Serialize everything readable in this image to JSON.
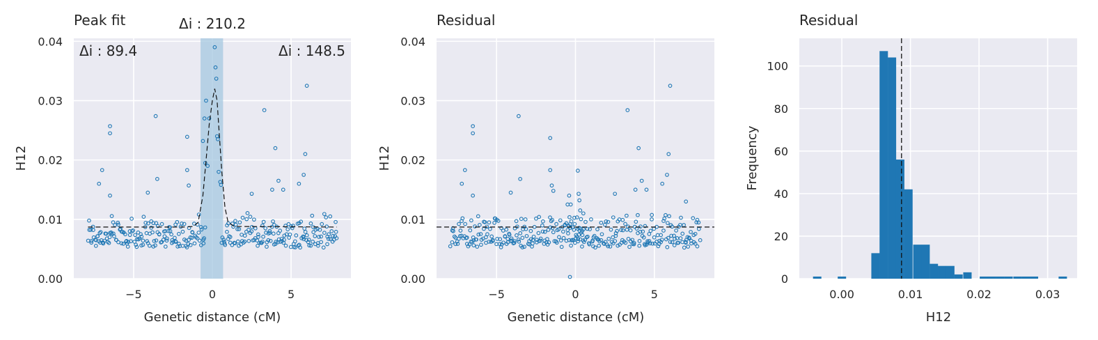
{
  "chart_data": [
    {
      "type": "scatter",
      "title": "Peak fit",
      "xlabel": "Genetic distance (cM)",
      "ylabel": "H12",
      "xlim": [
        -8.8,
        8.8
      ],
      "ylim": [
        0,
        0.0405
      ],
      "xticks": [
        -5,
        0,
        5
      ],
      "xtick_labels": [
        "−5",
        "0",
        "5"
      ],
      "yticks": [
        0,
        0.01,
        0.02,
        0.03,
        0.04
      ],
      "ytick_labels": [
        "0.00",
        "0.01",
        "0.02",
        "0.03",
        "0.04"
      ],
      "grid": true,
      "point_color": "#1f77b4",
      "shaded_region": {
        "x0": -0.75,
        "x1": 0.68,
        "color": "#a6c8e0"
      },
      "baseline": 0.0087,
      "annotations": [
        {
          "text": "Δi : 89.4",
          "position": "top-left"
        },
        {
          "text": "Δi : 210.2",
          "position": "above-peak"
        },
        {
          "text": "Δi : 148.5",
          "position": "top-right"
        }
      ],
      "fit_curve": {
        "x": [
          -7.9,
          -1.8,
          -1.2,
          -0.9,
          -0.6,
          -0.4,
          -0.2,
          0.0,
          0.15,
          0.3,
          0.4,
          0.6,
          0.8,
          1.0,
          1.4,
          7.9
        ],
        "y": [
          0.0087,
          0.0087,
          0.0088,
          0.0095,
          0.014,
          0.02,
          0.026,
          0.03,
          0.032,
          0.03,
          0.026,
          0.018,
          0.012,
          0.0095,
          0.0088,
          0.0087
        ]
      },
      "high_points": [
        {
          "x": -6.5,
          "y": 0.0257
        },
        {
          "x": -6.5,
          "y": 0.0245
        },
        {
          "x": -7.0,
          "y": 0.0183
        },
        {
          "x": -7.2,
          "y": 0.016
        },
        {
          "x": -6.5,
          "y": 0.014
        },
        {
          "x": -3.6,
          "y": 0.0274
        },
        {
          "x": -4.1,
          "y": 0.0145
        },
        {
          "x": -3.5,
          "y": 0.0168
        },
        {
          "x": -1.6,
          "y": 0.0239
        },
        {
          "x": -1.6,
          "y": 0.0183
        },
        {
          "x": -1.5,
          "y": 0.0157
        },
        {
          "x": -0.6,
          "y": 0.0232
        },
        {
          "x": -0.4,
          "y": 0.03
        },
        {
          "x": -0.5,
          "y": 0.027
        },
        {
          "x": -0.2,
          "y": 0.027
        },
        {
          "x": 0.15,
          "y": 0.039
        },
        {
          "x": 0.2,
          "y": 0.0356
        },
        {
          "x": 0.25,
          "y": 0.0337
        },
        {
          "x": 0.3,
          "y": 0.024
        },
        {
          "x": 0.35,
          "y": 0.0235
        },
        {
          "x": 0.4,
          "y": 0.018
        },
        {
          "x": -0.45,
          "y": 0.0195
        },
        {
          "x": -0.3,
          "y": 0.019
        },
        {
          "x": 0.5,
          "y": 0.0163
        },
        {
          "x": 0.55,
          "y": 0.0158
        },
        {
          "x": 3.3,
          "y": 0.0284
        },
        {
          "x": 4.0,
          "y": 0.022
        },
        {
          "x": 4.2,
          "y": 0.0165
        },
        {
          "x": 3.8,
          "y": 0.015
        },
        {
          "x": 5.9,
          "y": 0.021
        },
        {
          "x": 6.0,
          "y": 0.0325
        },
        {
          "x": 5.8,
          "y": 0.0175
        },
        {
          "x": 5.5,
          "y": 0.016
        },
        {
          "x": 2.5,
          "y": 0.0143
        },
        {
          "x": 4.5,
          "y": 0.015
        }
      ]
    },
    {
      "type": "scatter",
      "title": "Residual",
      "xlabel": "Genetic distance (cM)",
      "ylabel": "H12",
      "xlim": [
        -8.8,
        8.8
      ],
      "ylim": [
        0,
        0.0405
      ],
      "xticks": [
        -5,
        0,
        5
      ],
      "xtick_labels": [
        "−5",
        "0",
        "5"
      ],
      "yticks": [
        0,
        0.01,
        0.02,
        0.03,
        0.04
      ],
      "ytick_labels": [
        "0.00",
        "0.01",
        "0.02",
        "0.03",
        "0.04"
      ],
      "grid": true,
      "point_color": "#1f77b4",
      "baseline": 0.0087,
      "high_points": [
        {
          "x": -6.5,
          "y": 0.0257
        },
        {
          "x": -6.5,
          "y": 0.0245
        },
        {
          "x": -7.0,
          "y": 0.0183
        },
        {
          "x": -7.2,
          "y": 0.016
        },
        {
          "x": -6.5,
          "y": 0.014
        },
        {
          "x": -3.6,
          "y": 0.0274
        },
        {
          "x": -4.1,
          "y": 0.0145
        },
        {
          "x": -3.5,
          "y": 0.0168
        },
        {
          "x": -1.6,
          "y": 0.0237
        },
        {
          "x": -1.6,
          "y": 0.0183
        },
        {
          "x": -1.5,
          "y": 0.0157
        },
        {
          "x": -1.4,
          "y": 0.0148
        },
        {
          "x": -0.4,
          "y": 0.014
        },
        {
          "x": -0.5,
          "y": 0.0125
        },
        {
          "x": -0.3,
          "y": 0.0125
        },
        {
          "x": 0.15,
          "y": 0.0182
        },
        {
          "x": 0.2,
          "y": 0.0143
        },
        {
          "x": 0.25,
          "y": 0.0132
        },
        {
          "x": 0.3,
          "y": 0.0115
        },
        {
          "x": -0.35,
          "y": 0.0003
        },
        {
          "x": 0.5,
          "y": 0.011
        },
        {
          "x": 3.3,
          "y": 0.0284
        },
        {
          "x": 4.0,
          "y": 0.022
        },
        {
          "x": 4.2,
          "y": 0.0165
        },
        {
          "x": 3.8,
          "y": 0.015
        },
        {
          "x": 5.9,
          "y": 0.021
        },
        {
          "x": 6.0,
          "y": 0.0325
        },
        {
          "x": 5.8,
          "y": 0.0175
        },
        {
          "x": 5.5,
          "y": 0.016
        },
        {
          "x": 2.5,
          "y": 0.0143
        },
        {
          "x": 4.5,
          "y": 0.015
        },
        {
          "x": 7.0,
          "y": 0.013
        }
      ]
    },
    {
      "type": "bar",
      "title": "Residual",
      "xlabel": "H12",
      "ylabel": "Frequency",
      "xlim": [
        -0.0062,
        0.0343
      ],
      "ylim": [
        0,
        113
      ],
      "xticks": [
        0.0,
        0.01,
        0.02,
        0.03
      ],
      "xtick_labels": [
        "0.00",
        "0.01",
        "0.02",
        "0.03"
      ],
      "yticks": [
        0,
        20,
        40,
        60,
        80,
        100
      ],
      "ytick_labels": [
        "0",
        "20",
        "40",
        "60",
        "80",
        "100"
      ],
      "grid": true,
      "bar_color": "#1f77b4",
      "vline": 0.0087,
      "bin_width": 0.00122,
      "bins": [
        {
          "x0": -0.0042,
          "count": 1
        },
        {
          "x0": -0.0006,
          "count": 1
        },
        {
          "x0": 0.0043,
          "count": 12
        },
        {
          "x0": 0.0055,
          "count": 107
        },
        {
          "x0": 0.0067,
          "count": 104
        },
        {
          "x0": 0.0079,
          "count": 56
        },
        {
          "x0": 0.0091,
          "count": 42
        },
        {
          "x0": 0.0104,
          "count": 16
        },
        {
          "x0": 0.0116,
          "count": 16
        },
        {
          "x0": 0.0128,
          "count": 7
        },
        {
          "x0": 0.014,
          "count": 6
        },
        {
          "x0": 0.0152,
          "count": 6
        },
        {
          "x0": 0.0164,
          "count": 2
        },
        {
          "x0": 0.0177,
          "count": 3
        },
        {
          "x0": 0.0201,
          "count": 1
        },
        {
          "x0": 0.0213,
          "count": 1
        },
        {
          "x0": 0.0225,
          "count": 1
        },
        {
          "x0": 0.0237,
          "count": 1
        },
        {
          "x0": 0.025,
          "count": 1
        },
        {
          "x0": 0.0262,
          "count": 1
        },
        {
          "x0": 0.0274,
          "count": 1
        },
        {
          "x0": 0.0316,
          "count": 1
        }
      ]
    }
  ]
}
